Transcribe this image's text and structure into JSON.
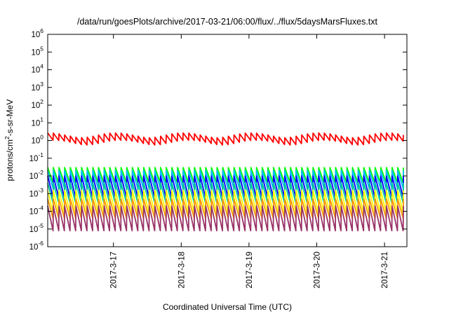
{
  "chart_data": {
    "type": "line",
    "title": "/data/run/goesPlots/archive/2017-03-21/06:00/flux/../flux/5daysMarsFluxes.txt",
    "xlabel": "Coordinated Universal Time (UTC)",
    "ylabel_parts": [
      "protons/cm",
      "2",
      "-s-sr-MeV"
    ],
    "yscale": "log",
    "ylim": [
      1e-06,
      1000000.0
    ],
    "xlim": [
      0,
      5.3
    ],
    "y_ticks": [
      {
        "base": "10",
        "exp": "-6"
      },
      {
        "base": "10",
        "exp": "-5"
      },
      {
        "base": "10",
        "exp": "-4"
      },
      {
        "base": "10",
        "exp": "-3"
      },
      {
        "base": "10",
        "exp": "-2"
      },
      {
        "base": "10",
        "exp": "-1"
      },
      {
        "base": "10",
        "exp": "0"
      },
      {
        "base": "10",
        "exp": "1"
      },
      {
        "base": "10",
        "exp": "2"
      },
      {
        "base": "10",
        "exp": "3"
      },
      {
        "base": "10",
        "exp": "4"
      },
      {
        "base": "10",
        "exp": "5"
      },
      {
        "base": "10",
        "exp": "6"
      }
    ],
    "x_ticks": [
      {
        "label": "2017-3-17",
        "value": 0.97
      },
      {
        "label": "2017-3-18",
        "value": 1.97
      },
      {
        "label": "2017-3-19",
        "value": 2.97
      },
      {
        "label": "2017-3-20",
        "value": 3.97
      },
      {
        "label": "2017-3-21",
        "value": 4.97
      }
    ],
    "grid": false,
    "sawtooth_period": 0.0833,
    "series": [
      {
        "color": "#ff0000",
        "low": [
          0.8,
          3.5
        ],
        "modulated": true
      },
      {
        "color": "#00ff00",
        "low": 0.004,
        "high": 0.03
      },
      {
        "color": "#00bfff",
        "low": 0.002,
        "high": 0.02
      },
      {
        "color": "#0000ff",
        "low": 0.0006,
        "high": 0.01
      },
      {
        "color": "#00cc99",
        "low": 0.0003,
        "high": 0.004
      },
      {
        "color": "#ffff00",
        "low": 8e-05,
        "high": 0.0015
      },
      {
        "color": "#ff9900",
        "low": 4e-05,
        "high": 0.0005
      },
      {
        "color": "#993366",
        "low": 8e-06,
        "high": 0.0002
      }
    ]
  }
}
